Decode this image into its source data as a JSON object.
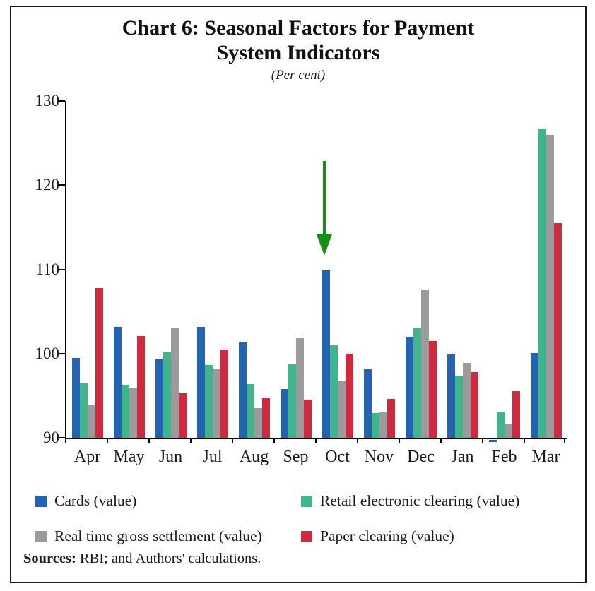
{
  "header": {
    "title_line1": "Chart 6: Seasonal Factors for Payment",
    "title_line2": "System Indicators",
    "subtitle": "(Per cent)"
  },
  "chart_data": {
    "type": "bar",
    "title": "Chart 6: Seasonal Factors for Payment System Indicators",
    "subtitle": "(Per cent)",
    "categories": [
      "Apr",
      "May",
      "Jun",
      "Jul",
      "Aug",
      "Sep",
      "Oct",
      "Nov",
      "Dec",
      "Jan",
      "Feb",
      "Mar"
    ],
    "series": [
      {
        "name": "Cards (value)",
        "color": "#2363b2",
        "values": [
          99.5,
          103.2,
          99.3,
          103.2,
          101.3,
          95.8,
          109.9,
          98.1,
          102.0,
          99.9,
          89.7,
          100.1
        ]
      },
      {
        "name": "Retail electronic clearing (value)",
        "color": "#40b58b",
        "values": [
          96.5,
          96.3,
          100.2,
          98.6,
          96.4,
          98.7,
          101.0,
          92.9,
          103.1,
          97.3,
          93.0,
          126.7
        ]
      },
      {
        "name": "Real time gross settlement (value)",
        "color": "#9b9b9d",
        "values": [
          93.9,
          95.9,
          103.1,
          98.1,
          93.5,
          101.8,
          96.8,
          93.1,
          107.5,
          98.9,
          91.7,
          126.0
        ]
      },
      {
        "name": "Paper clearing (value)",
        "color": "#ce2b41",
        "values": [
          107.8,
          102.1,
          95.3,
          100.5,
          94.7,
          94.5,
          100.0,
          94.6,
          101.5,
          97.8,
          95.5,
          115.5
        ]
      }
    ],
    "ylim": [
      90,
      130
    ],
    "yticks": [
      90,
      100,
      110,
      120,
      130
    ],
    "grid": false,
    "legend_position": "bottom",
    "annotation": {
      "type": "down-arrow",
      "color": "#149114",
      "category": "Oct",
      "series": "Cards (value)"
    }
  },
  "footer": {
    "sources_label": "Sources:",
    "sources_text": " RBI; and Authors' calculations."
  }
}
